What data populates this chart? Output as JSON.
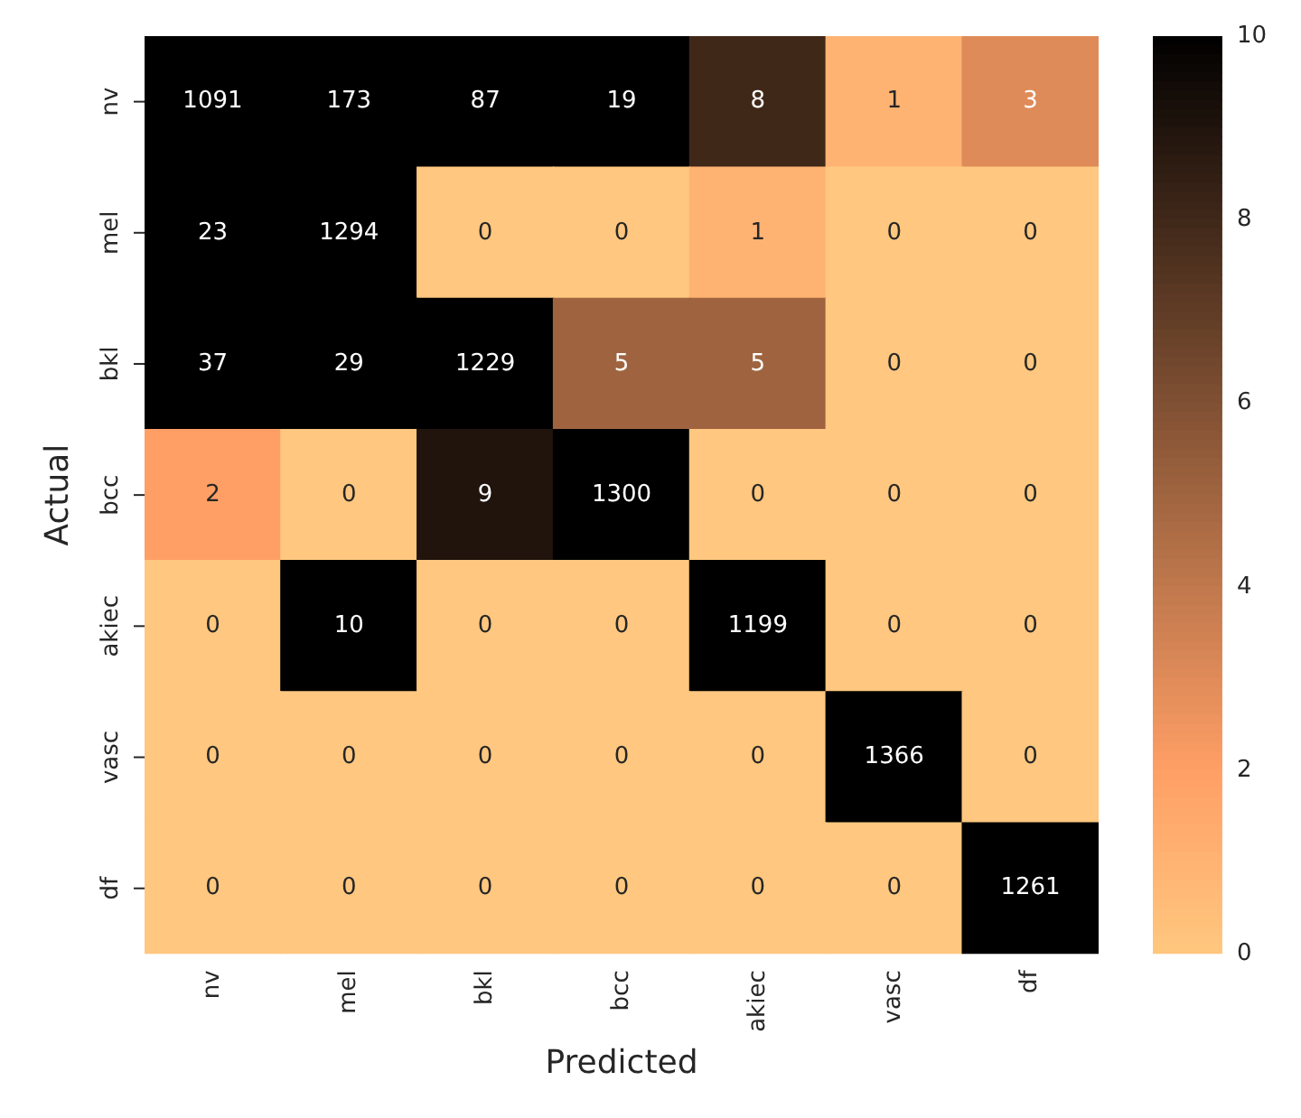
{
  "chart_data": {
    "type": "heatmap",
    "xlabel": "Predicted",
    "ylabel": "Actual",
    "categories": [
      "nv",
      "mel",
      "bkl",
      "bcc",
      "akiec",
      "vasc",
      "df"
    ],
    "y_categories": [
      "nv",
      "mel",
      "bkl",
      "bcc",
      "akiec",
      "vasc",
      "df"
    ],
    "cells": [
      [
        1091,
        173,
        87,
        19,
        8,
        1,
        3
      ],
      [
        23,
        1294,
        0,
        0,
        1,
        0,
        0
      ],
      [
        37,
        29,
        1229,
        5,
        5,
        0,
        0
      ],
      [
        2,
        0,
        9,
        1300,
        0,
        0,
        0
      ],
      [
        0,
        10,
        0,
        0,
        1199,
        0,
        0
      ],
      [
        0,
        0,
        0,
        0,
        0,
        1366,
        0
      ],
      [
        0,
        0,
        0,
        0,
        0,
        0,
        1261
      ]
    ],
    "clim": [
      0,
      10
    ],
    "cticks": [
      0,
      2,
      4,
      6,
      8,
      10
    ],
    "data_labels": true
  }
}
